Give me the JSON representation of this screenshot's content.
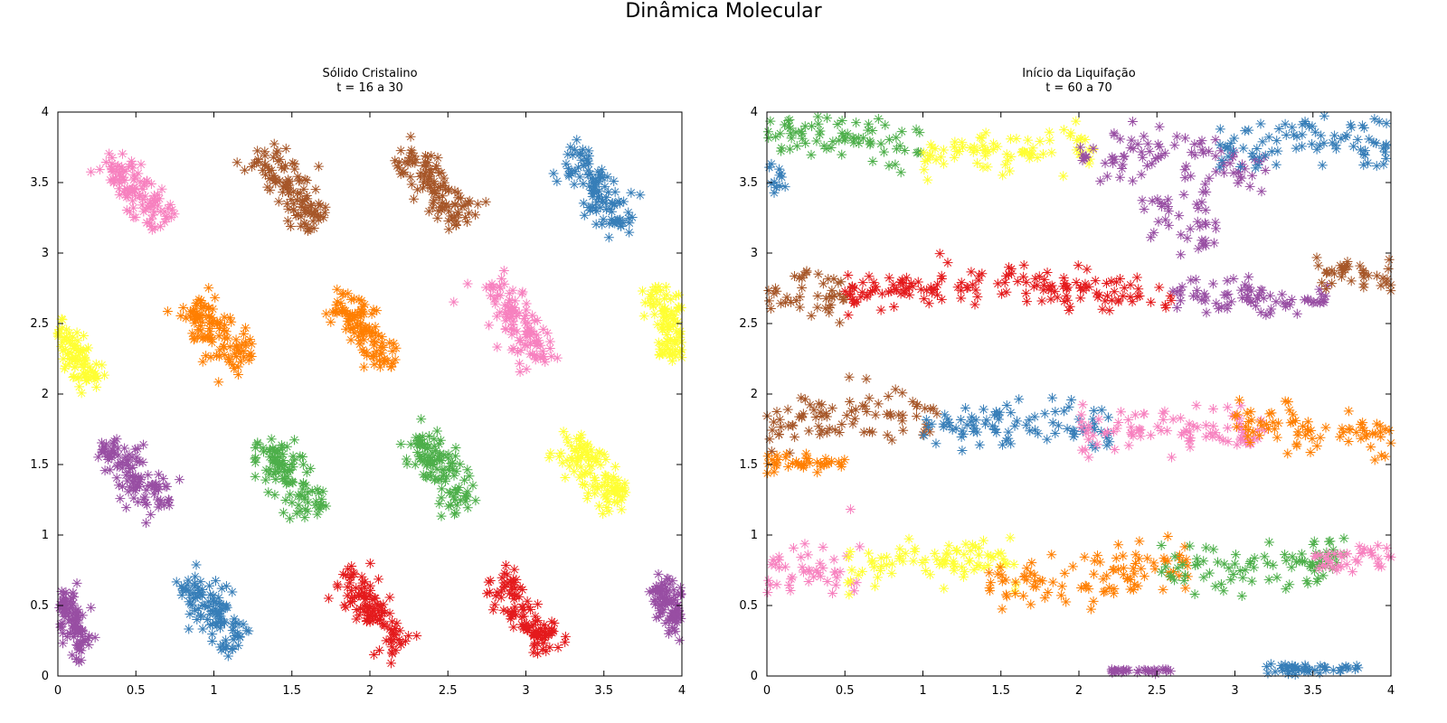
{
  "figure": {
    "title": "Dinâmica Molecular"
  },
  "chart_data": [
    {
      "type": "scatter",
      "title": "Sólido Cristalino",
      "subtitle": "t = 16 a 30",
      "xlabel": "",
      "ylabel": "",
      "xlim": [
        0,
        4
      ],
      "ylim": [
        0,
        4
      ],
      "xticks": [
        "0",
        "0.5",
        "1",
        "1.5",
        "2",
        "2.5",
        "3",
        "3.5",
        "4"
      ],
      "yticks": [
        "0",
        "0.5",
        "1",
        "1.5",
        "2",
        "2.5",
        "3",
        "3.5",
        "4"
      ],
      "marker": "asterisk",
      "grid": false,
      "clusters": [
        {
          "color": "#f781bf",
          "cx": 0.5,
          "cy": 3.45,
          "angle": -55,
          "length": 0.6,
          "width": 0.13
        },
        {
          "color": "#a65628",
          "cx": 1.48,
          "cy": 3.45,
          "angle": -55,
          "length": 0.6,
          "width": 0.12
        },
        {
          "color": "#a65628",
          "cx": 2.42,
          "cy": 3.48,
          "angle": -55,
          "length": 0.62,
          "width": 0.12
        },
        {
          "color": "#377eb8",
          "cx": 3.45,
          "cy": 3.45,
          "angle": -58,
          "length": 0.6,
          "width": 0.13
        },
        {
          "color": "#ffff33",
          "cx": 0.08,
          "cy": 2.35,
          "angle": -60,
          "length": 0.55,
          "width": 0.1
        },
        {
          "color": "#ff7f00",
          "cx": 1.0,
          "cy": 2.45,
          "angle": -50,
          "length": 0.55,
          "width": 0.13
        },
        {
          "color": "#ff7f00",
          "cx": 1.96,
          "cy": 2.45,
          "angle": -55,
          "length": 0.55,
          "width": 0.12
        },
        {
          "color": "#f781bf",
          "cx": 2.95,
          "cy": 2.5,
          "angle": -58,
          "length": 0.65,
          "width": 0.13
        },
        {
          "color": "#ffff33",
          "cx": 3.92,
          "cy": 2.5,
          "angle": -75,
          "length": 0.5,
          "width": 0.1
        },
        {
          "color": "#984ea3",
          "cx": 0.48,
          "cy": 1.42,
          "angle": -50,
          "length": 0.55,
          "width": 0.13
        },
        {
          "color": "#4daf4a",
          "cx": 1.48,
          "cy": 1.4,
          "angle": -55,
          "length": 0.6,
          "width": 0.13
        },
        {
          "color": "#4daf4a",
          "cx": 2.45,
          "cy": 1.45,
          "angle": -55,
          "length": 0.55,
          "width": 0.13
        },
        {
          "color": "#ffff33",
          "cx": 3.45,
          "cy": 1.45,
          "angle": -55,
          "length": 0.55,
          "width": 0.13
        },
        {
          "color": "#984ea3",
          "cx": 0.1,
          "cy": 0.38,
          "angle": -70,
          "length": 0.45,
          "width": 0.1
        },
        {
          "color": "#377eb8",
          "cx": 1.0,
          "cy": 0.45,
          "angle": -55,
          "length": 0.55,
          "width": 0.12
        },
        {
          "color": "#e41a1c",
          "cx": 2.02,
          "cy": 0.45,
          "angle": -55,
          "length": 0.6,
          "width": 0.12
        },
        {
          "color": "#e41a1c",
          "cx": 2.98,
          "cy": 0.45,
          "angle": -55,
          "length": 0.6,
          "width": 0.12
        },
        {
          "color": "#984ea3",
          "cx": 3.93,
          "cy": 0.5,
          "angle": -60,
          "length": 0.4,
          "width": 0.1
        }
      ]
    },
    {
      "type": "scatter",
      "title": "Início da Liquifação",
      "subtitle": "t = 60 a 70",
      "xlabel": "",
      "ylabel": "",
      "xlim": [
        0,
        4
      ],
      "ylim": [
        0,
        4
      ],
      "xticks": [
        "0",
        "0.5",
        "1",
        "1.5",
        "2",
        "2.5",
        "3",
        "3.5",
        "4"
      ],
      "yticks": [
        "0",
        "0.5",
        "1",
        "1.5",
        "2",
        "2.5",
        "3",
        "3.5",
        "4"
      ],
      "marker": "asterisk",
      "grid": false,
      "bands": [
        {
          "color": "#4daf4a",
          "x": [
            0.0,
            1.0
          ],
          "y": 3.8,
          "spread": 0.17
        },
        {
          "color": "#377eb8",
          "x": [
            0.0,
            0.12
          ],
          "y": 3.55,
          "spread": 0.1
        },
        {
          "color": "#ffff33",
          "x": [
            1.0,
            2.1
          ],
          "y": 3.72,
          "spread": 0.14
        },
        {
          "color": "#984ea3",
          "x": [
            2.0,
            3.2
          ],
          "y": 3.65,
          "spread": 0.22
        },
        {
          "color": "#984ea3",
          "x": [
            2.4,
            2.9
          ],
          "y": 3.2,
          "spread": 0.2
        },
        {
          "color": "#377eb8",
          "x": [
            2.9,
            4.0
          ],
          "y": 3.75,
          "spread": 0.18
        },
        {
          "color": "#a65628",
          "x": [
            0.0,
            0.6
          ],
          "y": 2.7,
          "spread": 0.15
        },
        {
          "color": "#e41a1c",
          "x": [
            0.5,
            2.6
          ],
          "y": 2.75,
          "spread": 0.15
        },
        {
          "color": "#984ea3",
          "x": [
            2.6,
            3.6
          ],
          "y": 2.7,
          "spread": 0.15
        },
        {
          "color": "#a65628",
          "x": [
            3.5,
            4.0
          ],
          "y": 2.85,
          "spread": 0.1
        },
        {
          "color": "#a65628",
          "x": [
            0.0,
            1.1
          ],
          "y": 1.8,
          "spread": 0.17
        },
        {
          "color": "#ff7f00",
          "x": [
            0.0,
            0.5
          ],
          "y": 1.5,
          "spread": 0.07
        },
        {
          "color": "#377eb8",
          "x": [
            1.0,
            2.2
          ],
          "y": 1.75,
          "spread": 0.16
        },
        {
          "color": "#f781bf",
          "x": [
            2.0,
            3.2
          ],
          "y": 1.72,
          "spread": 0.15
        },
        {
          "color": "#ff7f00",
          "x": [
            3.0,
            4.0
          ],
          "y": 1.75,
          "spread": 0.14
        },
        {
          "color": "#f781bf",
          "x": [
            0.0,
            0.6
          ],
          "y": 0.75,
          "spread": 0.18
        },
        {
          "color": "#ffff33",
          "x": [
            0.5,
            1.6
          ],
          "y": 0.78,
          "spread": 0.16
        },
        {
          "color": "#ff7f00",
          "x": [
            1.4,
            2.7
          ],
          "y": 0.72,
          "spread": 0.17
        },
        {
          "color": "#4daf4a",
          "x": [
            2.5,
            3.7
          ],
          "y": 0.8,
          "spread": 0.17
        },
        {
          "color": "#f781bf",
          "x": [
            3.5,
            4.0
          ],
          "y": 0.85,
          "spread": 0.1
        },
        {
          "color": "#377eb8",
          "x": [
            3.2,
            3.8
          ],
          "y": 0.04,
          "spread": 0.04
        },
        {
          "color": "#984ea3",
          "x": [
            2.2,
            2.6
          ],
          "y": 0.03,
          "spread": 0.02
        }
      ]
    }
  ]
}
